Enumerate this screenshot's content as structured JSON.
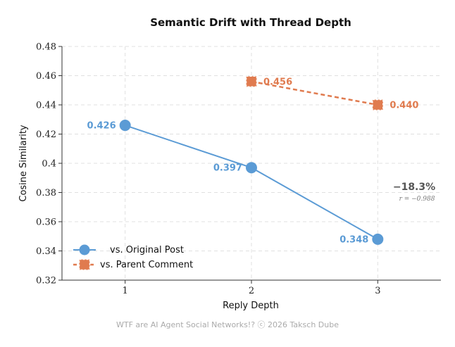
{
  "chart_data": {
    "type": "line",
    "title": "Semantic Drift with Thread Depth",
    "xlabel": "Reply Depth",
    "ylabel": "Cosine Similarity",
    "x_ticks": [
      "1",
      "2",
      "3"
    ],
    "y_ticks": [
      "0.32",
      "0.34",
      "0.36",
      "0.38",
      "0.4",
      "0.42",
      "0.44",
      "0.46",
      "0.48"
    ],
    "xlim": [
      0.5,
      3.5
    ],
    "ylim": [
      0.32,
      0.48
    ],
    "grid": true,
    "legend_position": "lower-left",
    "series": [
      {
        "name": "vs. Original Post",
        "color": "#5b9bd5",
        "line_style": "solid",
        "marker": "circle",
        "x": [
          1,
          2,
          3
        ],
        "values": [
          0.426,
          0.397,
          0.348
        ],
        "labels": [
          "0.426",
          "0.397",
          "0.348"
        ]
      },
      {
        "name": "vs. Parent Comment",
        "color": "#e07b4f",
        "line_style": "dashed",
        "marker": "square",
        "x": [
          2,
          3
        ],
        "values": [
          0.456,
          0.44
        ],
        "labels": [
          "0.456",
          "0.440"
        ]
      }
    ],
    "annotation": {
      "main": "−18.3%",
      "sub": "r = −0.988"
    },
    "footer": "WTF are AI Agent Social Networks!?   ⓒ 2026 Taksch Dube"
  }
}
